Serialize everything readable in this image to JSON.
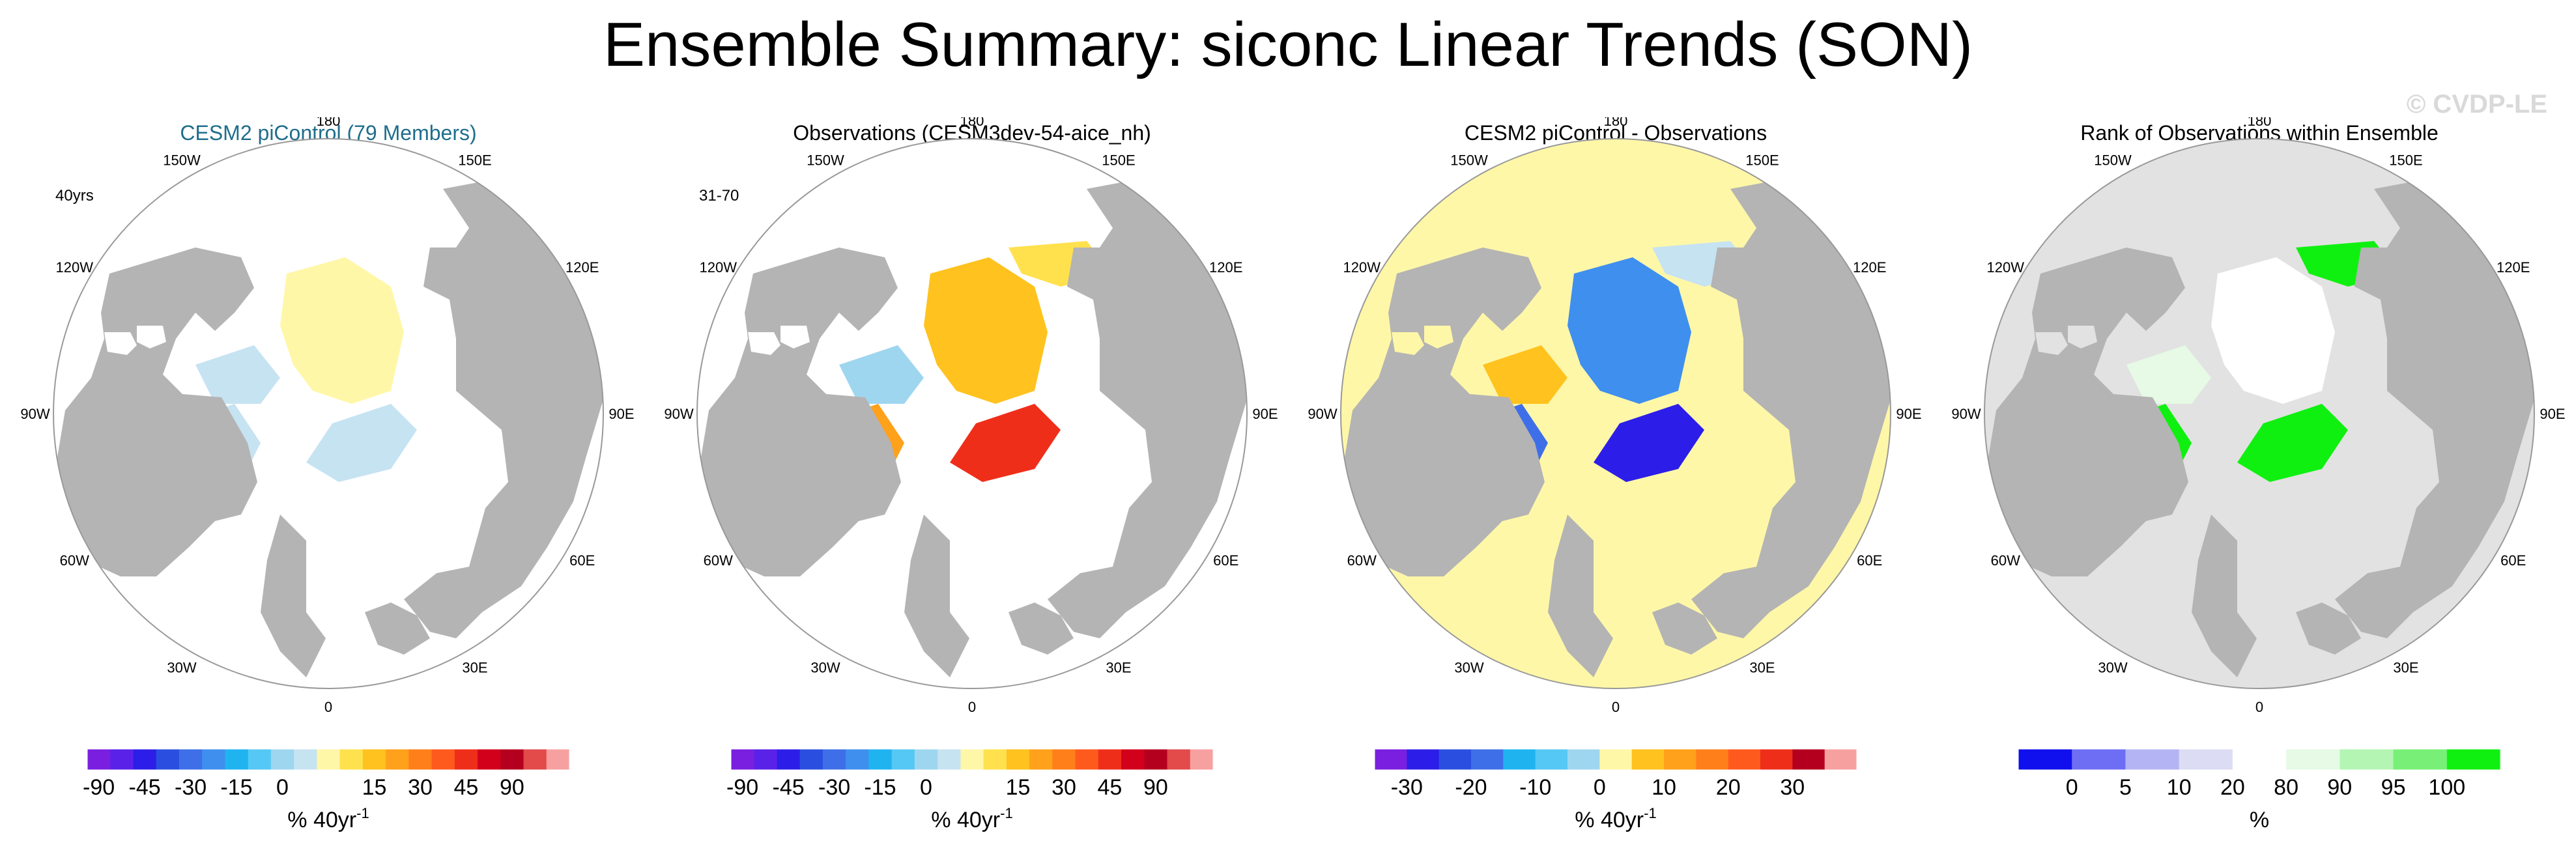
{
  "title": "Ensemble Summary: siconc Linear Trends (SON)",
  "watermark": "© CVDP-LE",
  "colors": {
    "land": "#b4b4b4",
    "ice_free": "#ffffff",
    "panel1_title": "#1f6e8c",
    "frame": "#999999"
  },
  "longitude_labels": [
    "180",
    "150E",
    "120E",
    "90E",
    "60E",
    "30E",
    "0",
    "30W",
    "60W",
    "90W",
    "120W",
    "150W"
  ],
  "chart_data": [
    {
      "type": "heatmap",
      "projection": "north-polar-stereographic",
      "title": "CESM2 piControl (79 Members)",
      "corner_label": "40yrs",
      "background_fill": "#ffffff",
      "colorbar": {
        "colors": [
          "#7a1fe0",
          "#5a22e8",
          "#2c1ee8",
          "#2a4fe0",
          "#3f6fe8",
          "#3f8fef",
          "#1fb4f0",
          "#56c8f5",
          "#9fd6ef",
          "#c6e3f2",
          "#fff7a8",
          "#ffe14e",
          "#ffc21e",
          "#ffa11a",
          "#ff7f1a",
          "#ff5a1e",
          "#ef2e1a",
          "#d2001a",
          "#b4001e",
          "#e34a4a",
          "#f7a0a0"
        ],
        "ticks": [
          "-90",
          "-45",
          "-30",
          "-15",
          "0",
          "15",
          "30",
          "45",
          "90"
        ],
        "tick_positions": [
          0.5,
          2.5,
          4.5,
          6.5,
          8.5,
          12.5,
          14.5,
          16.5,
          18.5
        ],
        "label": "% 40yr",
        "label_superscript": "-1"
      },
      "regions": [
        {
          "name": "central-arctic",
          "color": "#fff7a8"
        },
        {
          "name": "beaufort",
          "color": "#c6e3f2"
        },
        {
          "name": "barents",
          "color": "#c6e3f2"
        },
        {
          "name": "hudson-bay",
          "color": "#fff7a8"
        },
        {
          "name": "baffin",
          "color": "#c6e3f2"
        }
      ]
    },
    {
      "type": "heatmap",
      "projection": "north-polar-stereographic",
      "title": "Observations (CESM3dev-54-aice_nh)",
      "corner_label": "31-70",
      "background_fill": "#ffffff",
      "colorbar": {
        "colors": [
          "#7a1fe0",
          "#5a22e8",
          "#2c1ee8",
          "#2a4fe0",
          "#3f6fe8",
          "#3f8fef",
          "#1fb4f0",
          "#56c8f5",
          "#9fd6ef",
          "#c6e3f2",
          "#fff7a8",
          "#ffe14e",
          "#ffc21e",
          "#ffa11a",
          "#ff7f1a",
          "#ff5a1e",
          "#ef2e1a",
          "#d2001a",
          "#b4001e",
          "#e34a4a",
          "#f7a0a0"
        ],
        "ticks": [
          "-90",
          "-45",
          "-30",
          "-15",
          "0",
          "15",
          "30",
          "45",
          "90"
        ],
        "tick_positions": [
          0.5,
          2.5,
          4.5,
          6.5,
          8.5,
          12.5,
          14.5,
          16.5,
          18.5
        ],
        "label": "% 40yr",
        "label_superscript": "-1"
      },
      "regions": [
        {
          "name": "central-arctic",
          "color": "#ffc21e"
        },
        {
          "name": "siberian-shelf",
          "color": "#ffe14e"
        },
        {
          "name": "beaufort",
          "color": "#9fd6ef"
        },
        {
          "name": "barents",
          "color": "#ef2e1a"
        },
        {
          "name": "hudson-bay",
          "color": "#fff7a8"
        },
        {
          "name": "baffin",
          "color": "#ffa11a"
        }
      ]
    },
    {
      "type": "heatmap",
      "projection": "north-polar-stereographic",
      "title": "CESM2 piControl - Observations",
      "corner_label": "",
      "background_fill": "#fff7a8",
      "colorbar": {
        "colors": [
          "#7a1fe0",
          "#2c1ee8",
          "#2a4fe0",
          "#3f6fe8",
          "#1fb4f0",
          "#56c8f5",
          "#9fd6ef",
          "#fff7a8",
          "#ffc21e",
          "#ffa11a",
          "#ff7f1a",
          "#ff5a1e",
          "#ef2e1a",
          "#b4001e",
          "#f7a0a0"
        ],
        "ticks": [
          "-30",
          "-20",
          "-10",
          "0",
          "10",
          "20",
          "30"
        ],
        "tick_positions": [
          1.0,
          3.0,
          5.0,
          7.0,
          9.0,
          11.0,
          13.0
        ],
        "label": "% 40yr",
        "label_superscript": "-1"
      },
      "regions": [
        {
          "name": "central-arctic",
          "color": "#3f8fef"
        },
        {
          "name": "siberian-shelf",
          "color": "#c6e3f2"
        },
        {
          "name": "beaufort",
          "color": "#ffc21e"
        },
        {
          "name": "barents",
          "color": "#2c1ee8"
        },
        {
          "name": "hudson-bay",
          "color": "#fff7a8"
        },
        {
          "name": "baffin",
          "color": "#3f6fe8"
        }
      ]
    },
    {
      "type": "heatmap",
      "projection": "north-polar-stereographic",
      "title": "Rank of Observations within Ensemble",
      "corner_label": "",
      "background_fill": "#e2e2e2",
      "colorbar": {
        "colors": [
          "#1010ee",
          "#6e6ef5",
          "#b4b4f5",
          "#dcdcf5",
          "#ffffff",
          "#e6fae6",
          "#b4f5b4",
          "#78f078",
          "#10f010"
        ],
        "ticks": [
          "0",
          "5",
          "10",
          "20",
          "80",
          "90",
          "95",
          "100"
        ],
        "tick_positions": [
          1.0,
          2.0,
          3.0,
          4.0,
          5.0,
          6.0,
          7.0,
          8.0
        ],
        "label": "%",
        "label_superscript": ""
      },
      "regions": [
        {
          "name": "central-arctic",
          "color": "#ffffff"
        },
        {
          "name": "siberian-shelf",
          "color": "#10f010"
        },
        {
          "name": "beaufort",
          "color": "#e6fae6"
        },
        {
          "name": "barents",
          "color": "#10f010"
        },
        {
          "name": "hudson-bay",
          "color": "#1010ee"
        },
        {
          "name": "baffin",
          "color": "#10f010"
        }
      ]
    }
  ]
}
